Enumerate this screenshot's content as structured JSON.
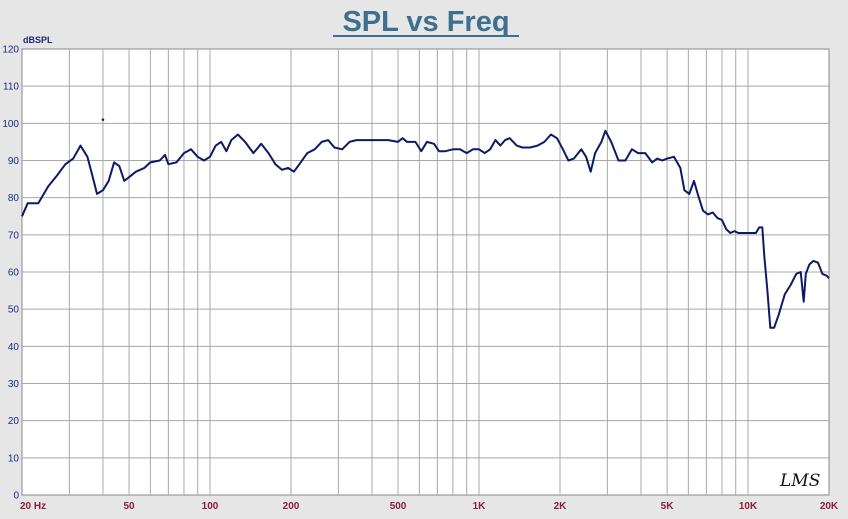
{
  "chart_data": {
    "type": "line",
    "title": "SPL vs Freq",
    "ylabel": "dBSPL",
    "xlabel": "",
    "x_scale": "log",
    "xlim": [
      20,
      20000
    ],
    "ylim": [
      0,
      120
    ],
    "grid": true,
    "y_ticks": [
      0,
      10,
      20,
      30,
      40,
      50,
      60,
      70,
      80,
      90,
      100,
      110,
      120
    ],
    "x_ticks": [
      {
        "value": 20,
        "label": "20  Hz"
      },
      {
        "value": 50,
        "label": "50"
      },
      {
        "value": 100,
        "label": "100"
      },
      {
        "value": 200,
        "label": "200"
      },
      {
        "value": 500,
        "label": "500"
      },
      {
        "value": 1000,
        "label": "1K"
      },
      {
        "value": 2000,
        "label": "2K"
      },
      {
        "value": 5000,
        "label": "5K"
      },
      {
        "value": 10000,
        "label": "10K"
      },
      {
        "value": 20000,
        "label": "20K"
      }
    ],
    "series": [
      {
        "color": "#0d1a66",
        "points": [
          [
            20,
            75
          ],
          [
            21,
            78.5
          ],
          [
            23,
            78.5
          ],
          [
            25,
            83
          ],
          [
            27,
            86
          ],
          [
            29,
            89
          ],
          [
            31,
            90.5
          ],
          [
            33,
            94
          ],
          [
            35,
            91
          ],
          [
            36.5,
            86
          ],
          [
            38,
            81
          ],
          [
            40,
            82
          ],
          [
            42,
            84.5
          ],
          [
            44,
            89.5
          ],
          [
            46,
            88.5
          ],
          [
            48,
            84.5
          ],
          [
            50,
            85.5
          ],
          [
            53,
            87
          ],
          [
            57,
            88
          ],
          [
            60,
            89.5
          ],
          [
            65,
            90
          ],
          [
            68,
            91.5
          ],
          [
            70,
            89
          ],
          [
            75,
            89.5
          ],
          [
            80,
            92
          ],
          [
            85,
            93
          ],
          [
            90,
            91
          ],
          [
            95,
            90
          ],
          [
            100,
            91
          ],
          [
            105,
            94
          ],
          [
            110,
            95
          ],
          [
            115,
            92.5
          ],
          [
            120,
            95.5
          ],
          [
            127,
            97
          ],
          [
            135,
            95
          ],
          [
            145,
            92
          ],
          [
            155,
            94.5
          ],
          [
            165,
            92
          ],
          [
            175,
            89
          ],
          [
            185,
            87.5
          ],
          [
            195,
            88
          ],
          [
            205,
            87
          ],
          [
            215,
            89
          ],
          [
            230,
            92
          ],
          [
            245,
            93
          ],
          [
            260,
            95
          ],
          [
            275,
            95.5
          ],
          [
            290,
            93.5
          ],
          [
            310,
            93
          ],
          [
            330,
            95
          ],
          [
            350,
            95.5
          ],
          [
            380,
            95.5
          ],
          [
            420,
            95.5
          ],
          [
            460,
            95.5
          ],
          [
            500,
            95
          ],
          [
            520,
            96
          ],
          [
            540,
            95
          ],
          [
            580,
            95
          ],
          [
            610,
            92.5
          ],
          [
            640,
            95
          ],
          [
            680,
            94.5
          ],
          [
            710,
            92.5
          ],
          [
            750,
            92.5
          ],
          [
            800,
            93
          ],
          [
            850,
            93
          ],
          [
            900,
            92
          ],
          [
            950,
            93
          ],
          [
            1000,
            93
          ],
          [
            1050,
            92
          ],
          [
            1100,
            93
          ],
          [
            1150,
            95.5
          ],
          [
            1200,
            94
          ],
          [
            1250,
            95.5
          ],
          [
            1300,
            96
          ],
          [
            1380,
            94
          ],
          [
            1450,
            93.5
          ],
          [
            1550,
            93.5
          ],
          [
            1650,
            94
          ],
          [
            1750,
            95
          ],
          [
            1850,
            97
          ],
          [
            1950,
            96
          ],
          [
            2050,
            93
          ],
          [
            2150,
            90
          ],
          [
            2250,
            90.5
          ],
          [
            2400,
            93
          ],
          [
            2500,
            91
          ],
          [
            2600,
            87
          ],
          [
            2700,
            92
          ],
          [
            2850,
            95
          ],
          [
            2950,
            98
          ],
          [
            3100,
            95
          ],
          [
            3300,
            90
          ],
          [
            3500,
            90
          ],
          [
            3700,
            93
          ],
          [
            3900,
            92
          ],
          [
            4150,
            92
          ],
          [
            4400,
            89.5
          ],
          [
            4600,
            90.5
          ],
          [
            4800,
            90
          ],
          [
            5000,
            90.5
          ],
          [
            5300,
            91
          ],
          [
            5600,
            88
          ],
          [
            5800,
            82
          ],
          [
            6050,
            81
          ],
          [
            6300,
            84.5
          ],
          [
            6500,
            81
          ],
          [
            6800,
            76.5
          ],
          [
            7100,
            75.5
          ],
          [
            7400,
            76
          ],
          [
            7700,
            74.5
          ],
          [
            8000,
            74
          ],
          [
            8300,
            71.5
          ],
          [
            8600,
            70.5
          ],
          [
            8900,
            71
          ],
          [
            9200,
            70.5
          ],
          [
            10000,
            70.5
          ],
          [
            10700,
            70.5
          ],
          [
            11000,
            72
          ],
          [
            11300,
            72
          ],
          [
            11500,
            64
          ],
          [
            11800,
            55
          ],
          [
            12100,
            45
          ],
          [
            12500,
            45
          ],
          [
            13000,
            48.5
          ],
          [
            13700,
            54
          ],
          [
            14400,
            56.5
          ],
          [
            15100,
            59.5
          ],
          [
            15700,
            60
          ],
          [
            16100,
            52
          ],
          [
            16400,
            59.5
          ],
          [
            16900,
            62
          ],
          [
            17500,
            63
          ],
          [
            18200,
            62.5
          ],
          [
            18900,
            59.5
          ],
          [
            19600,
            59
          ],
          [
            20000,
            58.3
          ]
        ]
      }
    ]
  }
}
